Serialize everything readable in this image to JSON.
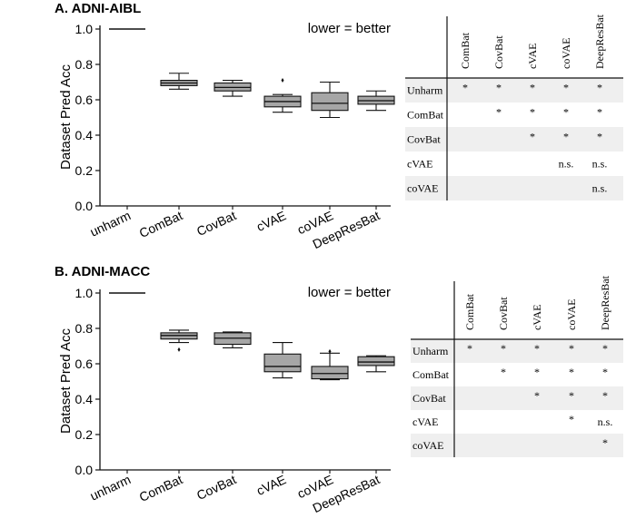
{
  "chart_data": [
    {
      "type": "box",
      "title": "A. ADNI-AIBL",
      "ylabel": "Dataset Pred Acc",
      "ylim": [
        0.0,
        1.0
      ],
      "yticks": [
        "0.0",
        "0.2",
        "0.4",
        "0.6",
        "0.8",
        "1.0"
      ],
      "categories": [
        "unharm",
        "ComBat",
        "CovBat",
        "cVAE",
        "coVAE",
        "DeepResBat"
      ],
      "annotation": "lower = better",
      "boxes": [
        {
          "min": 1.0,
          "q1": 1.0,
          "median": 1.0,
          "q3": 1.0,
          "max": 1.0,
          "outliers": []
        },
        {
          "min": 0.66,
          "q1": 0.68,
          "median": 0.695,
          "q3": 0.71,
          "max": 0.75,
          "outliers": []
        },
        {
          "min": 0.62,
          "q1": 0.65,
          "median": 0.67,
          "q3": 0.695,
          "max": 0.71,
          "outliers": []
        },
        {
          "min": 0.53,
          "q1": 0.56,
          "median": 0.59,
          "q3": 0.62,
          "max": 0.63,
          "outliers": [
            0.71
          ]
        },
        {
          "min": 0.5,
          "q1": 0.54,
          "median": 0.58,
          "q3": 0.64,
          "max": 0.7,
          "outliers": []
        },
        {
          "min": 0.54,
          "q1": 0.575,
          "median": 0.595,
          "q3": 0.62,
          "max": 0.65,
          "outliers": []
        }
      ],
      "table": {
        "columns": [
          "ComBat",
          "CovBat",
          "cVAE",
          "coVAE",
          "DeepResBat"
        ],
        "rows": [
          {
            "name": "Unharm",
            "cells": [
              "*",
              "*",
              "*",
              "*",
              "*"
            ]
          },
          {
            "name": "ComBat",
            "cells": [
              "",
              "*",
              "*",
              "*",
              "*"
            ]
          },
          {
            "name": "CovBat",
            "cells": [
              "",
              "",
              "*",
              "*",
              "*"
            ]
          },
          {
            "name": "cVAE",
            "cells": [
              "",
              "",
              "",
              "n.s.",
              "n.s."
            ]
          },
          {
            "name": "coVAE",
            "cells": [
              "",
              "",
              "",
              "",
              "n.s."
            ]
          }
        ]
      }
    },
    {
      "type": "box",
      "title": "B. ADNI-MACC",
      "ylabel": "Dataset Pred Acc",
      "ylim": [
        0.0,
        1.0
      ],
      "yticks": [
        "0.0",
        "0.2",
        "0.4",
        "0.6",
        "0.8",
        "1.0"
      ],
      "categories": [
        "unharm",
        "ComBat",
        "CovBat",
        "cVAE",
        "coVAE",
        "DeepResBat"
      ],
      "annotation": "lower = better",
      "boxes": [
        {
          "min": 1.0,
          "q1": 1.0,
          "median": 1.0,
          "q3": 1.0,
          "max": 1.0,
          "outliers": []
        },
        {
          "min": 0.72,
          "q1": 0.74,
          "median": 0.76,
          "q3": 0.775,
          "max": 0.79,
          "outliers": [
            0.68
          ]
        },
        {
          "min": 0.69,
          "q1": 0.71,
          "median": 0.745,
          "q3": 0.775,
          "max": 0.78,
          "outliers": []
        },
        {
          "min": 0.52,
          "q1": 0.555,
          "median": 0.585,
          "q3": 0.655,
          "max": 0.72,
          "outliers": []
        },
        {
          "min": 0.51,
          "q1": 0.515,
          "median": 0.545,
          "q3": 0.585,
          "max": 0.66,
          "outliers": [
            0.67
          ]
        },
        {
          "min": 0.555,
          "q1": 0.59,
          "median": 0.61,
          "q3": 0.64,
          "max": 0.645,
          "outliers": []
        }
      ],
      "table": {
        "columns": [
          "ComBat",
          "CovBat",
          "cVAE",
          "coVAE",
          "DeepResBat"
        ],
        "rows": [
          {
            "name": "Unharm",
            "cells": [
              "*",
              "*",
              "*",
              "*",
              "*"
            ]
          },
          {
            "name": "ComBat",
            "cells": [
              "",
              "*",
              "*",
              "*",
              "*"
            ]
          },
          {
            "name": "CovBat",
            "cells": [
              "",
              "",
              "*",
              "*",
              "*"
            ]
          },
          {
            "name": "cVAE",
            "cells": [
              "",
              "",
              "",
              "*",
              "n.s."
            ]
          },
          {
            "name": "coVAE",
            "cells": [
              "",
              "",
              "",
              "",
              "*"
            ]
          }
        ]
      }
    }
  ],
  "colors": {
    "box_fill": "#a6a6a6",
    "stroke": "#111111",
    "row_shade": "#efefef"
  }
}
